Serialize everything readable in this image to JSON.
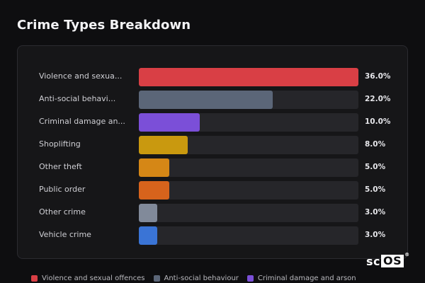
{
  "header": {
    "title": "Crime Types Breakdown"
  },
  "chart_data": {
    "type": "bar",
    "orientation": "horizontal",
    "title": "Crime Types Breakdown",
    "xlim": [
      0,
      36
    ],
    "grid": false,
    "legend_position": "bottom",
    "categories": [
      {
        "label": "Violence and sexua...",
        "value": 36.0,
        "display": "36.0%",
        "color": "#d93f45"
      },
      {
        "label": "Anti-social behavi...",
        "value": 22.0,
        "display": "22.0%",
        "color": "#5b6678"
      },
      {
        "label": "Criminal damage an...",
        "value": 10.0,
        "display": "10.0%",
        "color": "#7b4fd8"
      },
      {
        "label": "Shoplifting",
        "value": 8.0,
        "display": "8.0%",
        "color": "#c9990f"
      },
      {
        "label": "Other theft",
        "value": 5.0,
        "display": "5.0%",
        "color": "#d58716"
      },
      {
        "label": "Public order",
        "value": 5.0,
        "display": "5.0%",
        "color": "#d7631c"
      },
      {
        "label": "Other crime",
        "value": 3.0,
        "display": "3.0%",
        "color": "#818a9a"
      },
      {
        "label": "Vehicle crime",
        "value": 3.0,
        "display": "3.0%",
        "color": "#3a74d6"
      }
    ],
    "legend": [
      {
        "label": "Violence and sexual offences",
        "color": "#d93f45"
      },
      {
        "label": "Anti-social behaviour",
        "color": "#5b6678"
      },
      {
        "label": "Criminal damage and arson",
        "color": "#7b4fd8"
      }
    ]
  },
  "watermark": {
    "text_a": "sc",
    "text_b": "OS",
    "reg": "®"
  }
}
